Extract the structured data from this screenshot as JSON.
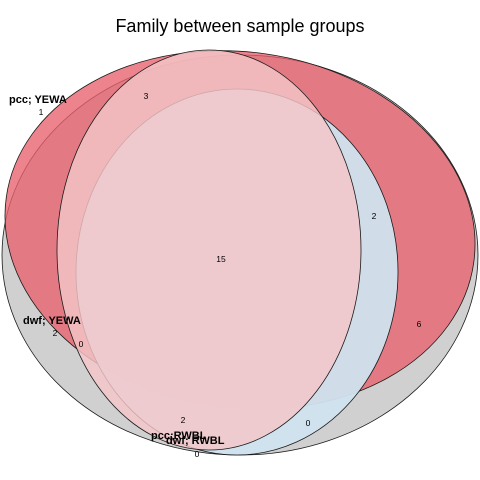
{
  "title": "Family between sample groups",
  "sets": [
    {
      "id": "dwf_yewa",
      "label": "dwf; YEWA",
      "fill": "#c8c8c8"
    },
    {
      "id": "pcc_yewa",
      "label": "pcc; YEWA",
      "fill": "#e8707a"
    },
    {
      "id": "pcc_rwbl",
      "label": "pcc;RWBL",
      "fill": "#cfe3ee"
    },
    {
      "id": "dwf_rwbl",
      "label": "dwf; RWBL",
      "fill": "#e0c6c8"
    }
  ],
  "counts": {
    "pcc_yewa_only": "1",
    "region_top": "3",
    "region_right_inner": "2",
    "region_center": "15",
    "region_right_outer": "6",
    "dwf_yewa_only": "2",
    "region_left_small": "0",
    "region_bottom": "2",
    "region_bottom_right": "0",
    "region_bottom_tiny": "0"
  },
  "colors": {
    "stroke": "#1a1a1a"
  }
}
